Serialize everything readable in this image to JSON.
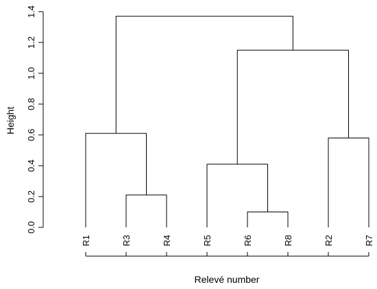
{
  "chart_data": {
    "type": "dendrogram",
    "title": "",
    "xlabel": "Relevé number",
    "ylabel": "Height",
    "ylim": [
      0,
      1.4
    ],
    "y_ticks": [
      "0.0",
      "0.2",
      "0.4",
      "0.6",
      "0.8",
      "1.0",
      "1.2",
      "1.4"
    ],
    "leaf_order": [
      "R1",
      "R3",
      "R4",
      "R5",
      "R6",
      "R8",
      "R2",
      "R7"
    ],
    "merges": [
      {
        "left": "R3",
        "right": "R4",
        "height": 0.21
      },
      {
        "left": "R1",
        "right": "R3+R4",
        "height": 0.61
      },
      {
        "left": "R6",
        "right": "R8",
        "height": 0.1
      },
      {
        "left": "R5",
        "right": "R6+R8",
        "height": 0.41
      },
      {
        "left": "R2",
        "right": "R7",
        "height": 0.58
      },
      {
        "left": "R5+R6+R8",
        "right": "R2+R7",
        "height": 1.15
      },
      {
        "left": "R1+R3+R4",
        "right": "R5+R6+R8+R2+R7",
        "height": 1.37
      }
    ]
  }
}
